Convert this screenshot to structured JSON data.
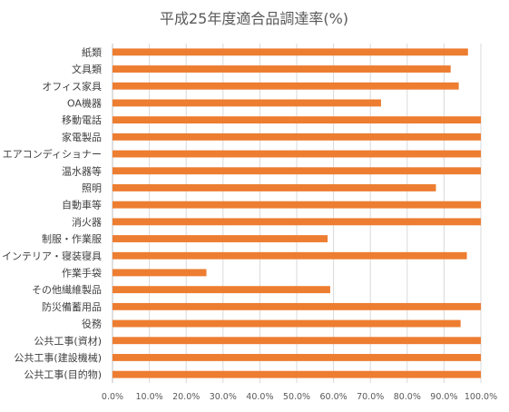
{
  "chart_data": {
    "type": "bar",
    "orientation": "horizontal",
    "title": "平成25年度適合品調達率(%)",
    "xlabel": "",
    "ylabel": "",
    "xlim": [
      0,
      100
    ],
    "x_ticks": [
      0,
      10,
      20,
      30,
      40,
      50,
      60,
      70,
      80,
      90,
      100
    ],
    "x_tick_labels": [
      "0.0%",
      "10.0%",
      "20.0%",
      "30.0%",
      "40.0%",
      "50.0%",
      "60.0%",
      "70.0%",
      "80.0%",
      "90.0%",
      "100.0%"
    ],
    "grid": true,
    "legend": "none",
    "bar_color": "#ED7D31",
    "categories": [
      "紙類",
      "文具類",
      "オフィス家具",
      "OA機器",
      "移動電話",
      "家電製品",
      "エアコンディショナー",
      "温水器等",
      "照明",
      "自動車等",
      "消火器",
      "制服・作業服",
      "インテリア・寝装寝具",
      "作業手袋",
      "その他繊維製品",
      "防災備蓄用品",
      "役務",
      "公共工事(資材)",
      "公共工事(建設機械)",
      "公共工事(目的物)"
    ],
    "values": [
      96.5,
      91.8,
      94,
      72.9,
      100,
      100,
      100,
      100,
      87.8,
      100,
      100,
      58.4,
      96.2,
      25.5,
      59.1,
      100,
      94.5,
      100,
      100,
      100
    ]
  }
}
